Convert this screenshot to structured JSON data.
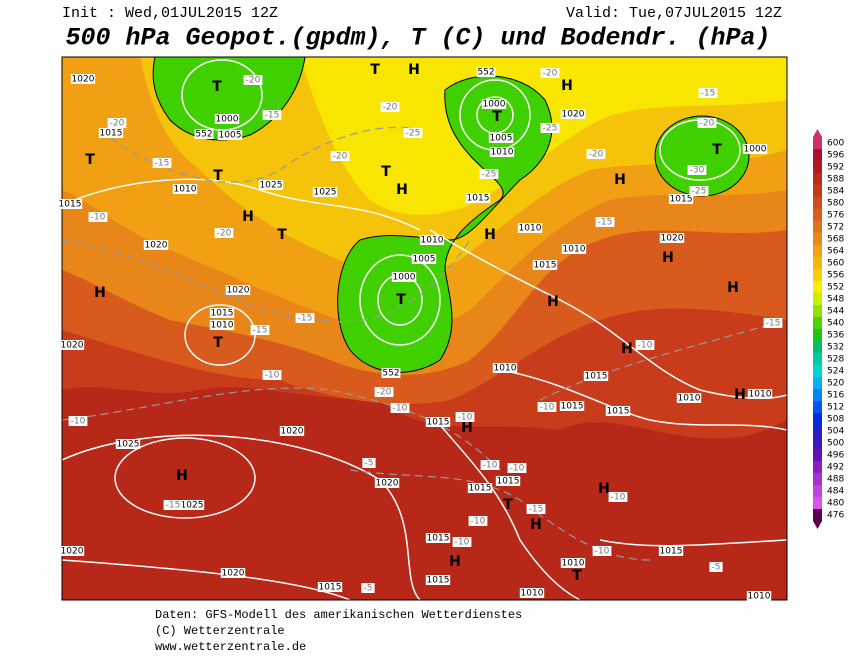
{
  "header": {
    "init": "Init : Wed,01JUL2015 12Z",
    "valid": "Valid: Tue,07JUL2015 12Z",
    "title": "500 hPa Geopot.(gpdm), T (C) und Bodendr. (hPa)"
  },
  "map": {
    "labels": [
      "H",
      "H",
      "H",
      "H",
      "H",
      "H",
      "H",
      "H",
      "H",
      "H",
      "H",
      "H",
      "H",
      "H",
      "H",
      "H",
      "H",
      "T",
      "T",
      "T",
      "T",
      "T",
      "T",
      "T",
      "T",
      "T",
      "T",
      "T",
      "T",
      "1020",
      "1015",
      "1010",
      "1025",
      "1025",
      "1000",
      "1005",
      "1000",
      "1005",
      "1010",
      "1015",
      "1020",
      "1000",
      "1015",
      "1020",
      "1020",
      "1015",
      "1010",
      "1010",
      "1005",
      "1000",
      "1010",
      "1015",
      "1010",
      "1020",
      "1010",
      "1015",
      "1015",
      "1015",
      "1010",
      "1010",
      "1015",
      "1025",
      "1020",
      "1020",
      "1025",
      "1015",
      "1015",
      "1015",
      "1020",
      "1015",
      "1015",
      "1010",
      "1010",
      "1010",
      "1015",
      "1020",
      "1020",
      "1015",
      "-20",
      "-15",
      "-20",
      "-15",
      "-20",
      "-25",
      "-20",
      "-25",
      "-20",
      "-25",
      "-20",
      "-15",
      "-20",
      "-30",
      "-25",
      "-15",
      "-20",
      "-15",
      "-15",
      "-10",
      "-10",
      "-20",
      "-10",
      "-10",
      "-10",
      "-5",
      "-10",
      "-10",
      "-10",
      "-10",
      "-15",
      "-10",
      "-15",
      "-10",
      "-10",
      "-10",
      "-5",
      "-5",
      "-15",
      "552",
      "552",
      "552"
    ]
  },
  "colorbar": {
    "levels": [
      600,
      596,
      592,
      588,
      584,
      580,
      576,
      572,
      568,
      564,
      560,
      556,
      552,
      548,
      544,
      540,
      536,
      532,
      528,
      524,
      520,
      516,
      512,
      508,
      504,
      500,
      496,
      492,
      488,
      484,
      480,
      476
    ],
    "colors": [
      "#d0306a",
      "#a8102c",
      "#b01c1c",
      "#bc2a1c",
      "#c63a1c",
      "#d04c1c",
      "#d85e1c",
      "#e0741a",
      "#e88a16",
      "#f0a012",
      "#f5b80c",
      "#f8cf06",
      "#f8ee00",
      "#c8ee00",
      "#8ee400",
      "#4cd400",
      "#1cc418",
      "#00c070",
      "#00cca8",
      "#00d6d6",
      "#00b2f0",
      "#0084f6",
      "#0056ee",
      "#0030de",
      "#2420cc",
      "#4414bc",
      "#6412b0",
      "#8620c0",
      "#a630d0",
      "#c440e0",
      "#dc52f0",
      "#5a0050"
    ]
  },
  "footer": {
    "lines": [
      "Daten: GFS-Modell des amerikanischen Wetterdienstes",
      "(C) Wetterzentrale",
      "www.wetterzentrale.de"
    ]
  }
}
